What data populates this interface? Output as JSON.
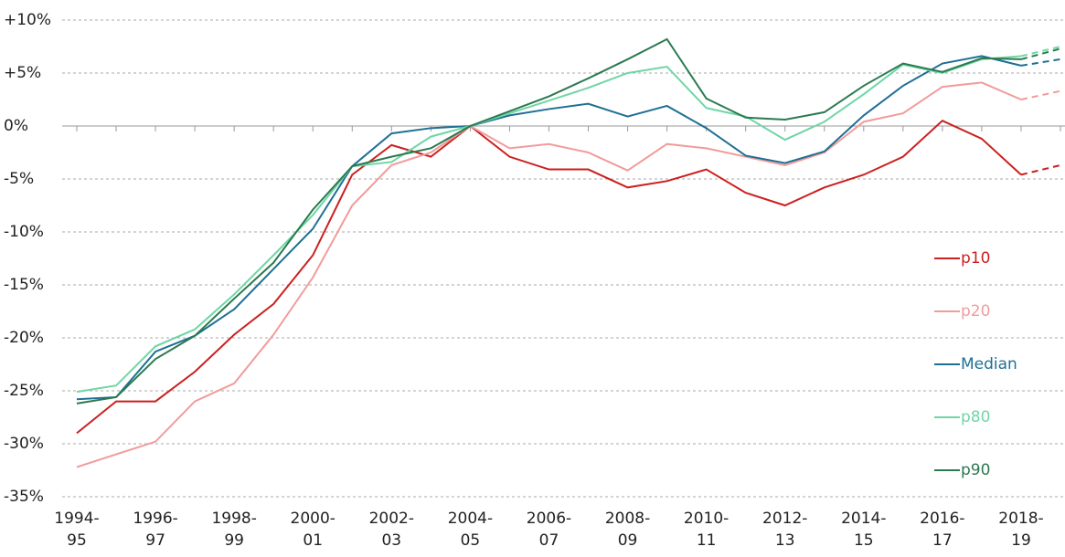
{
  "chart_data": {
    "type": "line",
    "categories": [
      "1994-95",
      null,
      "1996-97",
      null,
      "1998-99",
      null,
      "2000-01",
      null,
      "2002-03",
      null,
      "2004-05",
      null,
      "2006-07",
      null,
      "2008-09",
      null,
      "2010-11",
      null,
      "2012-13",
      null,
      "2014-15",
      null,
      "2016-17",
      null,
      "2018-19",
      null
    ],
    "projection_start": "2018-19",
    "ylim": [
      -35,
      10
    ],
    "yticks": [
      {
        "value": -35,
        "label": "-35%"
      },
      {
        "value": -30,
        "label": "-30%"
      },
      {
        "value": -25,
        "label": "-25%"
      },
      {
        "value": -20,
        "label": "-20%"
      },
      {
        "value": -15,
        "label": "-15%"
      },
      {
        "value": -10,
        "label": "-10%"
      },
      {
        "value": -5,
        "label": "-5%"
      },
      {
        "value": 0,
        "label": "0%"
      },
      {
        "value": 5,
        "label": "+5%"
      },
      {
        "value": 10,
        "label": "+10%"
      }
    ],
    "grid": true,
    "legend": "right",
    "series": [
      {
        "name": "p10",
        "color": "#cc1f1f",
        "values": [
          -29,
          -26,
          -26,
          -23.2,
          -19.7,
          -16.8,
          -12.2,
          -4.6,
          -1.8,
          -2.9,
          0,
          -2.9,
          -4.1,
          -4.1,
          -5.8,
          -5.2,
          -4.1,
          -6.3,
          -7.5,
          -5.8,
          -4.6,
          -2.9,
          0.5,
          -1.2,
          -4.6,
          -3.7
        ]
      },
      {
        "name": "p20",
        "color": "#f29b9b",
        "values": [
          -32.2,
          -31,
          -29.8,
          -26,
          -24.3,
          -19.7,
          -14.3,
          -7.5,
          -3.7,
          -2.5,
          0,
          -2.1,
          -1.7,
          -2.5,
          -4.2,
          -1.7,
          -2.1,
          -2.9,
          -3.7,
          -2.5,
          0.4,
          1.2,
          3.7,
          4.1,
          2.5,
          3.3
        ]
      },
      {
        "name": "Median",
        "color": "#1f6f94",
        "values": [
          -25.8,
          -25.6,
          -21.3,
          -19.8,
          -17.3,
          -13.5,
          -9.7,
          -3.8,
          -0.7,
          -0.2,
          0,
          1.0,
          1.6,
          2.1,
          0.9,
          1.9,
          -0.2,
          -2.8,
          -3.5,
          -2.4,
          1.0,
          3.8,
          5.9,
          6.6,
          5.7,
          6.3
        ]
      },
      {
        "name": "p80",
        "color": "#6fd6a6",
        "values": [
          -25.1,
          -24.5,
          -20.8,
          -19.2,
          -15.9,
          -12.2,
          -8.4,
          -3.8,
          -3.4,
          -1.0,
          0,
          1.2,
          2.4,
          3.6,
          5.0,
          5.6,
          1.7,
          0.9,
          -1.3,
          0.4,
          3.0,
          5.8,
          5.0,
          6.3,
          6.6,
          7.5
        ]
      },
      {
        "name": "p90",
        "color": "#2a7a4f",
        "values": [
          -26.2,
          -25.6,
          -22.0,
          -19.8,
          -16.3,
          -12.9,
          -7.9,
          -3.8,
          -2.9,
          -2.1,
          0,
          1.4,
          2.8,
          4.5,
          6.3,
          8.2,
          2.6,
          0.8,
          0.6,
          1.3,
          3.8,
          5.9,
          5.1,
          6.4,
          6.3,
          7.3
        ]
      }
    ]
  }
}
